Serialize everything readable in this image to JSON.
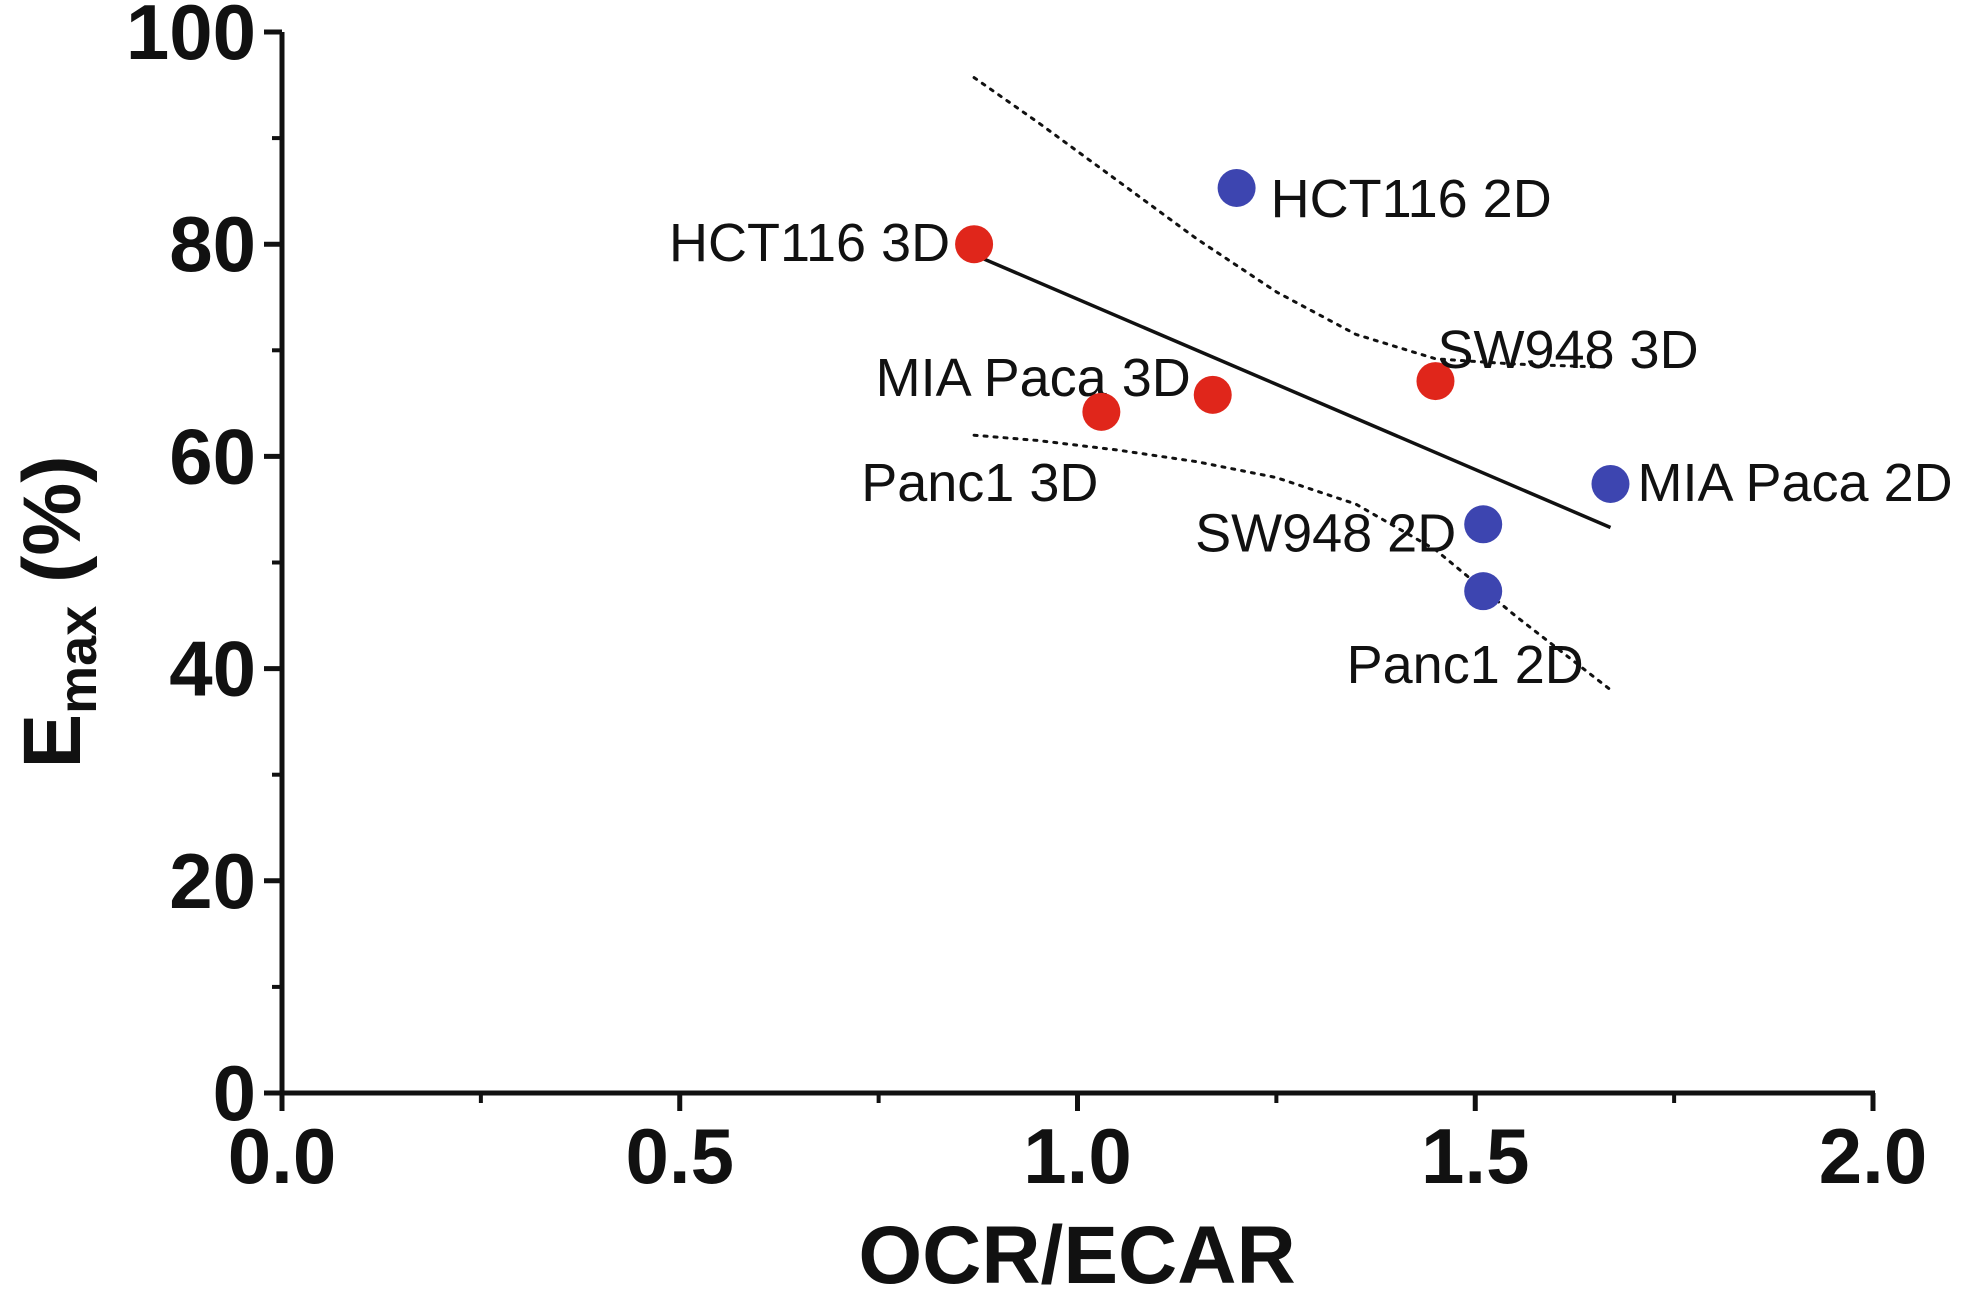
{
  "chart_data": {
    "type": "scatter",
    "xlabel": "OCR/ECAR",
    "ylabel": {
      "main": "E",
      "sub": "max",
      "suffix": " (%)"
    },
    "xlim": [
      0,
      2.0
    ],
    "ylim": [
      0,
      100
    ],
    "x_ticks": [
      {
        "value": 0.0,
        "label": "0.0"
      },
      {
        "value": 0.5,
        "label": "0.5"
      },
      {
        "value": 1.0,
        "label": "1.0"
      },
      {
        "value": 1.5,
        "label": "1.5"
      },
      {
        "value": 2.0,
        "label": "2.0"
      }
    ],
    "x_minor_ticks": [
      0.25,
      0.75,
      1.25,
      1.75
    ],
    "y_ticks": [
      {
        "value": 0,
        "label": "0"
      },
      {
        "value": 20,
        "label": "20"
      },
      {
        "value": 40,
        "label": "40"
      },
      {
        "value": 60,
        "label": "60"
      },
      {
        "value": 80,
        "label": "80"
      },
      {
        "value": 100,
        "label": "100"
      }
    ],
    "y_minor_ticks": [
      10,
      30,
      50,
      70,
      90
    ],
    "grid": false,
    "colors": {
      "3D": "#e0261b",
      "2D": "#3d45b0",
      "axis": "#111111"
    },
    "points": [
      {
        "label": "HCT116 3D",
        "x": 0.87,
        "y": 80.0,
        "group": "3D"
      },
      {
        "label": "MIA Paca 3D",
        "x": 1.17,
        "y": 65.8,
        "group": "3D"
      },
      {
        "label": "Panc1 3D",
        "x": 1.03,
        "y": 64.2,
        "group": "3D"
      },
      {
        "label": "SW948 3D",
        "x": 1.45,
        "y": 67.1,
        "group": "3D"
      },
      {
        "label": "HCT116 2D",
        "x": 1.2,
        "y": 85.3,
        "group": "2D"
      },
      {
        "label": "MIA Paca 2D",
        "x": 1.67,
        "y": 57.4,
        "group": "2D"
      },
      {
        "label": "SW948 2D",
        "x": 1.51,
        "y": 53.6,
        "group": "2D"
      },
      {
        "label": "Panc1 2D",
        "x": 1.51,
        "y": 47.3,
        "group": "2D"
      }
    ],
    "fit_line": [
      {
        "x": 0.87,
        "y": 79.0
      },
      {
        "x": 1.67,
        "y": 53.3
      }
    ],
    "confidence_upper": [
      {
        "x": 0.87,
        "y": 95.7
      },
      {
        "x": 0.95,
        "y": 91.5
      },
      {
        "x": 1.05,
        "y": 86.0
      },
      {
        "x": 1.15,
        "y": 80.5
      },
      {
        "x": 1.25,
        "y": 75.5
      },
      {
        "x": 1.35,
        "y": 71.5
      },
      {
        "x": 1.45,
        "y": 69.2
      },
      {
        "x": 1.55,
        "y": 68.7
      },
      {
        "x": 1.67,
        "y": 68.4
      }
    ],
    "confidence_lower": [
      {
        "x": 0.87,
        "y": 62.0
      },
      {
        "x": 0.95,
        "y": 61.5
      },
      {
        "x": 1.05,
        "y": 60.6
      },
      {
        "x": 1.15,
        "y": 59.5
      },
      {
        "x": 1.25,
        "y": 58.0
      },
      {
        "x": 1.35,
        "y": 55.5
      },
      {
        "x": 1.45,
        "y": 51.2
      },
      {
        "x": 1.55,
        "y": 45.0
      },
      {
        "x": 1.67,
        "y": 38.0
      }
    ]
  }
}
